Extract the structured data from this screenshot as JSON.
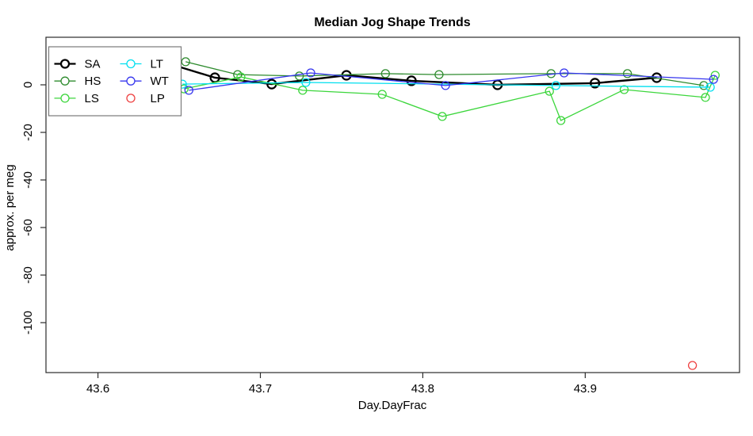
{
  "title": "Median Jog Shape Trends",
  "chart_data": {
    "type": "line",
    "title": "Median Jog Shape Trends",
    "xlabel": "Day.DayFrac",
    "ylabel": "approx. per meg",
    "xlim": [
      43.568,
      43.995
    ],
    "ylim": [
      -121,
      20
    ],
    "x_ticks": [
      43.6,
      43.7,
      43.8,
      43.9
    ],
    "y_ticks": [
      0,
      -20,
      -40,
      -60,
      -80,
      -100
    ],
    "grid": false,
    "legend_position": "top-left",
    "marker": "open-circle",
    "series": [
      {
        "name": "SA",
        "color": "#000000",
        "line_width": 2.4,
        "points": [
          [
            43.648,
            8.0
          ],
          [
            43.672,
            3.0
          ],
          [
            43.707,
            0.3
          ],
          [
            43.753,
            4.0
          ],
          [
            43.793,
            1.7
          ],
          [
            43.846,
            0.0
          ],
          [
            43.906,
            0.7
          ],
          [
            43.944,
            3.0
          ]
        ]
      },
      {
        "name": "HS",
        "color": "#2E8B2E",
        "line_width": 1.3,
        "points": [
          [
            43.654,
            9.7
          ],
          [
            43.686,
            4.3
          ],
          [
            43.724,
            3.7
          ],
          [
            43.777,
            4.7
          ],
          [
            43.81,
            4.3
          ],
          [
            43.879,
            4.7
          ],
          [
            43.926,
            4.7
          ],
          [
            43.973,
            -0.3
          ]
        ]
      },
      {
        "name": "LS",
        "color": "#3CD63C",
        "line_width": 1.3,
        "points": [
          [
            43.653,
            -1.7
          ],
          [
            43.688,
            3.3
          ],
          [
            43.726,
            -2.3
          ],
          [
            43.775,
            -4.0
          ],
          [
            43.812,
            -13.3
          ],
          [
            43.878,
            -2.7
          ],
          [
            43.885,
            -15.0
          ],
          [
            43.924,
            -2.0
          ],
          [
            43.974,
            -5.3
          ],
          [
            43.98,
            4.0
          ]
        ]
      },
      {
        "name": "LT",
        "color": "#00DFEF",
        "line_width": 1.3,
        "points": [
          [
            43.652,
            0.3
          ],
          [
            43.728,
            1.0
          ],
          [
            43.882,
            -0.3
          ],
          [
            43.977,
            -1.0
          ]
        ]
      },
      {
        "name": "WT",
        "color": "#3636EE",
        "line_width": 1.3,
        "points": [
          [
            43.656,
            -2.3
          ],
          [
            43.731,
            5.0
          ],
          [
            43.814,
            -0.3
          ],
          [
            43.887,
            5.0
          ],
          [
            43.979,
            2.3
          ]
        ]
      },
      {
        "name": "LP",
        "color": "#EE4040",
        "line_width": 0,
        "points": [
          [
            43.966,
            -118.0
          ]
        ]
      }
    ]
  },
  "legend": {
    "labels": [
      "SA",
      "HS",
      "LS",
      "LT",
      "WT",
      "LP"
    ]
  }
}
